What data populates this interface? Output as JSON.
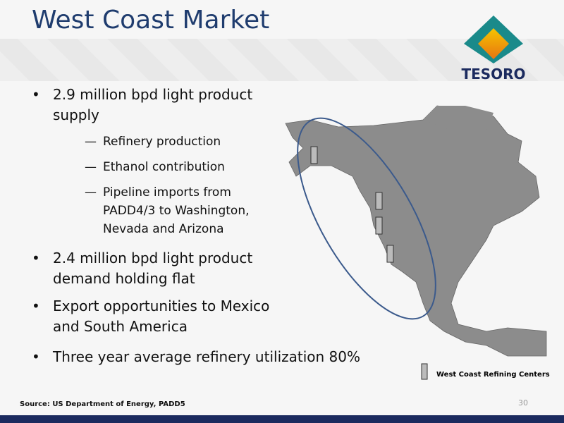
{
  "header": {
    "title": "West Coast Market",
    "logo": "TESORO"
  },
  "bullets": [
    {
      "text": "2.9 million bpd light product supply",
      "sub": [
        "Refinery production",
        "Ethanol contribution",
        "Pipeline imports from PADD4/3 to Washington, Nevada and Arizona"
      ]
    },
    {
      "text": "2.4 million bpd light product demand holding flat"
    },
    {
      "text": "Export opportunities to Mexico and South America"
    },
    {
      "text": "Three year average refinery utilization 80%"
    }
  ],
  "map": {
    "legend": "West Coast Refining Centers"
  },
  "footer": {
    "source": "Source: US Department of Energy, PADD5",
    "page": 30
  }
}
